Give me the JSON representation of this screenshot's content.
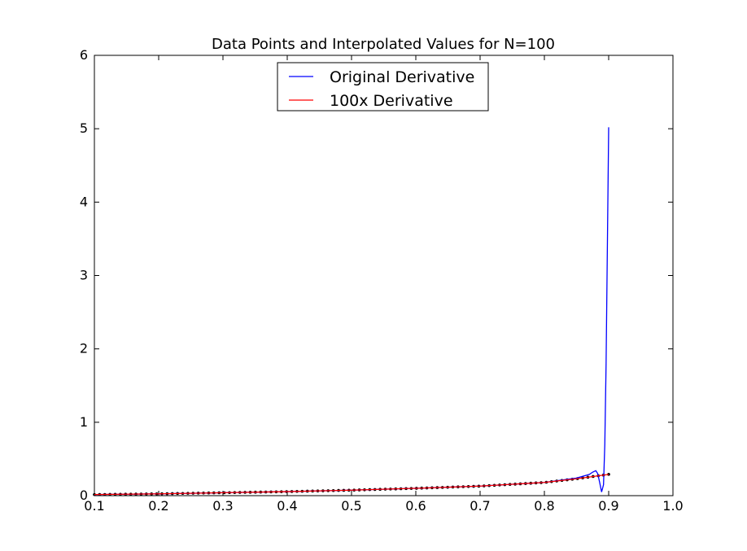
{
  "chart_data": {
    "type": "line",
    "title": "Data Points and Interpolated Values for N=100",
    "xlabel": "",
    "ylabel": "",
    "xlim": [
      0.1,
      1.0
    ],
    "ylim": [
      0,
      6
    ],
    "x_ticks": [
      "0.1",
      "0.2",
      "0.3",
      "0.4",
      "0.5",
      "0.6",
      "0.7",
      "0.8",
      "0.9",
      "1.0"
    ],
    "y_ticks": [
      "0",
      "1",
      "2",
      "3",
      "4",
      "5",
      "6"
    ],
    "grid": false,
    "legend_position": "upper-center",
    "series": [
      {
        "name": "Original Derivative",
        "color": "#0000ff",
        "x": [
          0.1,
          0.2,
          0.3,
          0.4,
          0.5,
          0.6,
          0.7,
          0.8,
          0.85,
          0.87,
          0.875,
          0.88,
          0.883,
          0.886,
          0.889,
          0.892,
          0.894,
          0.896,
          0.898,
          0.9
        ],
        "y": [
          0.015,
          0.025,
          0.04,
          0.055,
          0.075,
          0.1,
          0.13,
          0.18,
          0.24,
          0.29,
          0.32,
          0.34,
          0.3,
          0.18,
          0.05,
          0.15,
          0.7,
          1.8,
          3.4,
          5.02
        ]
      },
      {
        "name": "100x Derivative",
        "color": "#ff0000",
        "x": [
          0.1,
          0.2,
          0.3,
          0.4,
          0.5,
          0.6,
          0.7,
          0.8,
          0.85,
          0.9
        ],
        "y": [
          0.015,
          0.025,
          0.04,
          0.055,
          0.075,
          0.1,
          0.13,
          0.18,
          0.23,
          0.29
        ]
      }
    ],
    "data_points": {
      "color": "#000000",
      "count": 100,
      "x_start": 0.1,
      "x_end": 0.9
    }
  }
}
